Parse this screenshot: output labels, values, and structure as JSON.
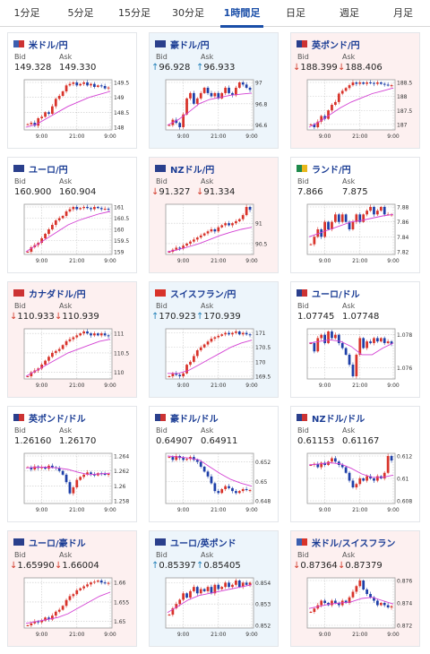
{
  "tabs": [
    {
      "label": "1分足",
      "active": false
    },
    {
      "label": "5分足",
      "active": false
    },
    {
      "label": "15分足",
      "active": false
    },
    {
      "label": "30分足",
      "active": false
    },
    {
      "label": "1時間足",
      "active": true
    },
    {
      "label": "日足",
      "active": false
    },
    {
      "label": "週足",
      "active": false
    },
    {
      "label": "月足",
      "active": false
    }
  ],
  "labels": {
    "bid": "Bid",
    "ask": "Ask"
  },
  "colors": {
    "down_bg": "#fdf0f0",
    "up_bg": "#edf5fb",
    "down": "#d23a2a",
    "up": "#1f7fb8",
    "candle_up": "#d8332a",
    "candle_down": "#1e3fa8",
    "ma": "#d340d3",
    "pair_text": "#1a3c94"
  },
  "cards": [
    {
      "pair": "米ドル/円",
      "flag": [
        "#3c5fb0",
        "#cc3333"
      ],
      "dir": "none",
      "bid": "149.328",
      "ask": "149.330",
      "chart": {
        "y_ticks": [
          "149.5",
          "149",
          "148.5",
          "148"
        ],
        "x_ticks": [
          "9:00",
          "21:00",
          "9:00"
        ],
        "path": [
          148.1,
          148.15,
          148.05,
          148.3,
          148.35,
          148.5,
          148.45,
          148.7,
          148.95,
          149.05,
          149.2,
          149.4,
          149.45,
          149.5,
          149.4,
          149.45,
          149.5,
          149.4,
          149.45,
          149.35,
          149.4,
          149.38,
          149.3,
          149.33
        ],
        "ma": [
          148.0,
          148.1,
          148.3,
          148.5,
          148.7,
          148.85,
          149.0,
          149.1,
          149.2
        ]
      }
    },
    {
      "pair": "豪ドル/円",
      "flag": [
        "#2a3f8c",
        "#2a3f8c"
      ],
      "dir": "up",
      "bid": "96.928",
      "ask": "96.933",
      "chart": {
        "y_ticks": [
          "97",
          "96.8",
          "96.6"
        ],
        "x_ticks": [
          "9:00",
          "21:00",
          "9:00"
        ],
        "path": [
          96.6,
          96.65,
          96.62,
          96.58,
          96.7,
          96.85,
          96.9,
          96.8,
          96.85,
          96.9,
          96.95,
          96.9,
          96.87,
          96.9,
          96.85,
          96.9,
          96.95,
          96.9,
          96.88,
          96.95,
          97.0,
          96.98,
          96.95,
          96.93
        ],
        "ma": [
          96.6,
          96.65,
          96.72,
          96.8,
          96.84,
          96.86,
          96.88,
          96.89,
          96.9
        ]
      }
    },
    {
      "pair": "英ポンド/円",
      "flag": [
        "#2a3f8c",
        "#cc3333"
      ],
      "dir": "down",
      "bid": "188.399",
      "ask": "188.406",
      "chart": {
        "y_ticks": [
          "188.5",
          "188",
          "187.5",
          "187"
        ],
        "x_ticks": [
          "9:00",
          "21:00",
          "9:00"
        ],
        "path": [
          187.0,
          186.9,
          187.1,
          187.3,
          187.2,
          187.5,
          187.7,
          187.8,
          188.1,
          188.2,
          188.3,
          188.4,
          188.5,
          188.45,
          188.5,
          188.45,
          188.5,
          188.48,
          188.45,
          188.5,
          188.45,
          188.42,
          188.4,
          188.4
        ],
        "ma": [
          186.9,
          187.1,
          187.35,
          187.6,
          187.8,
          187.95,
          188.1,
          188.2,
          188.3
        ]
      }
    },
    {
      "pair": "ユーロ/円",
      "flag": [
        "#2a3f8c",
        "#2a3f8c"
      ],
      "dir": "none",
      "bid": "160.900",
      "ask": "160.904",
      "chart": {
        "y_ticks": [
          "161",
          "160.5",
          "160",
          "159.5",
          "159"
        ],
        "x_ticks": [
          "9:00",
          "21:00",
          "9:00"
        ],
        "path": [
          159.0,
          159.2,
          159.3,
          159.4,
          159.6,
          159.8,
          160.0,
          160.2,
          160.4,
          160.5,
          160.6,
          160.8,
          160.9,
          161.0,
          160.9,
          160.95,
          161.0,
          160.95,
          160.9,
          161.0,
          160.95,
          160.9,
          160.92,
          160.9
        ],
        "ma": [
          159.0,
          159.3,
          159.6,
          159.9,
          160.2,
          160.4,
          160.55,
          160.7,
          160.8
        ]
      }
    },
    {
      "pair": "NZドル/円",
      "flag": [
        "#2a3f8c",
        "#2a3f8c"
      ],
      "dir": "down",
      "bid": "91.327",
      "ask": "91.334",
      "chart": {
        "y_ticks": [
          "91",
          "90.5"
        ],
        "x_ticks": [
          "9:00",
          "21:00",
          "9:00"
        ],
        "path": [
          90.3,
          90.35,
          90.4,
          90.38,
          90.45,
          90.5,
          90.55,
          90.6,
          90.65,
          90.7,
          90.75,
          90.8,
          90.85,
          90.8,
          90.9,
          90.95,
          91.0,
          90.95,
          91.0,
          91.05,
          91.1,
          91.2,
          91.4,
          91.33
        ],
        "ma": [
          90.3,
          90.35,
          90.42,
          90.5,
          90.6,
          90.7,
          90.78,
          90.85,
          90.9
        ]
      }
    },
    {
      "pair": "ランド/円",
      "flag": [
        "#1f8a4c",
        "#e8b71c"
      ],
      "dir": "none",
      "bid": "7.866",
      "ask": "7.875",
      "chart": {
        "y_ticks": [
          "7.88",
          "7.86",
          "7.84",
          "7.82"
        ],
        "x_ticks": [
          "9:00",
          "21:00",
          "9:00"
        ],
        "path": [
          7.83,
          7.84,
          7.85,
          7.84,
          7.86,
          7.85,
          7.86,
          7.87,
          7.86,
          7.87,
          7.86,
          7.85,
          7.86,
          7.87,
          7.86,
          7.87,
          7.875,
          7.88,
          7.87,
          7.875,
          7.88,
          7.87,
          7.87,
          7.87
        ],
        "ma": [
          7.84,
          7.845,
          7.85,
          7.855,
          7.86,
          7.862,
          7.865,
          7.868,
          7.87
        ]
      }
    },
    {
      "pair": "カナダドル/円",
      "flag": [
        "#cc3333",
        "#cc3333"
      ],
      "dir": "down",
      "bid": "110.933",
      "ask": "110.939",
      "chart": {
        "y_ticks": [
          "111",
          "110.5",
          "110"
        ],
        "x_ticks": [
          "9:00",
          "21:00",
          "9:00"
        ],
        "path": [
          109.9,
          110.0,
          110.05,
          110.1,
          110.2,
          110.3,
          110.4,
          110.5,
          110.55,
          110.6,
          110.7,
          110.8,
          110.85,
          110.9,
          110.95,
          111.0,
          111.05,
          111.0,
          110.95,
          111.0,
          110.95,
          111.0,
          110.95,
          110.93
        ],
        "ma": [
          109.9,
          110.05,
          110.2,
          110.35,
          110.5,
          110.6,
          110.7,
          110.8,
          110.85
        ]
      }
    },
    {
      "pair": "スイスフラン/円",
      "flag": [
        "#d8332a",
        "#d8332a"
      ],
      "dir": "up",
      "bid": "170.923",
      "ask": "170.939",
      "chart": {
        "y_ticks": [
          "171",
          "170.5",
          "170",
          "169.5"
        ],
        "x_ticks": [
          "9:00",
          "21:00",
          "9:00"
        ],
        "path": [
          169.5,
          169.6,
          169.55,
          169.5,
          169.6,
          169.9,
          170.0,
          170.2,
          170.4,
          170.5,
          170.6,
          170.7,
          170.8,
          170.85,
          170.9,
          170.95,
          171.0,
          170.95,
          171.0,
          171.05,
          170.95,
          171.0,
          170.95,
          170.93
        ],
        "ma": [
          169.6,
          169.6,
          169.7,
          169.9,
          170.1,
          170.3,
          170.5,
          170.65,
          170.75
        ]
      }
    },
    {
      "pair": "ユーロ/ドル",
      "flag": [
        "#2a3f8c",
        "#cc3333"
      ],
      "dir": "none",
      "bid": "1.07745",
      "ask": "1.07748",
      "chart": {
        "y_ticks": [
          "1.078",
          "1.076"
        ],
        "x_ticks": [
          "9:00",
          "21:00",
          "9:00"
        ],
        "path": [
          1.0775,
          1.077,
          1.0778,
          1.078,
          1.0775,
          1.0782,
          1.0778,
          1.078,
          1.0775,
          1.0772,
          1.0768,
          1.0762,
          1.0755,
          1.0768,
          1.0778,
          1.0772,
          1.0776,
          1.0775,
          1.0778,
          1.0776,
          1.0778,
          1.0775,
          1.0776,
          1.07745
        ],
        "ma": [
          1.0775,
          1.0776,
          1.0777,
          1.0776,
          1.0773,
          1.0768,
          1.0768,
          1.0772,
          1.0775
        ]
      }
    },
    {
      "pair": "英ポンド/ドル",
      "flag": [
        "#2a3f8c",
        "#cc3333"
      ],
      "dir": "none",
      "bid": "1.26160",
      "ask": "1.26170",
      "chart": {
        "y_ticks": [
          "1.264",
          "1.262",
          "1.26",
          "1.258"
        ],
        "x_ticks": [
          "9:00",
          "21:00",
          "9:00"
        ],
        "path": [
          1.2625,
          1.2622,
          1.2626,
          1.2624,
          1.2625,
          1.2623,
          1.2627,
          1.2625,
          1.2624,
          1.262,
          1.2615,
          1.2605,
          1.259,
          1.2598,
          1.2608,
          1.2612,
          1.2615,
          1.2618,
          1.2616,
          1.2614,
          1.2617,
          1.2616,
          1.2615,
          1.2616
        ],
        "ma": [
          1.2624,
          1.2625,
          1.2625,
          1.2624,
          1.2622,
          1.2618,
          1.2615,
          1.2616,
          1.2617
        ]
      }
    },
    {
      "pair": "豪ドル/ドル",
      "flag": [
        "#2a3f8c",
        "#cc3333"
      ],
      "dir": "none",
      "bid": "0.64907",
      "ask": "0.64911",
      "chart": {
        "y_ticks": [
          "0.652",
          "0.65",
          "0.648"
        ],
        "x_ticks": [
          "9:00",
          "21:00",
          "9:00"
        ],
        "path": [
          0.6525,
          0.6522,
          0.6526,
          0.6524,
          0.6522,
          0.6523,
          0.6525,
          0.6522,
          0.652,
          0.6515,
          0.651,
          0.6505,
          0.6498,
          0.649,
          0.6488,
          0.6492,
          0.6495,
          0.6493,
          0.649,
          0.6488,
          0.649,
          0.6492,
          0.6491,
          0.6491
        ],
        "ma": [
          0.6526,
          0.6525,
          0.6524,
          0.6522,
          0.6515,
          0.6508,
          0.6502,
          0.6498,
          0.6495
        ]
      }
    },
    {
      "pair": "NZドル/ドル",
      "flag": [
        "#2a3f8c",
        "#cc3333"
      ],
      "dir": "none",
      "bid": "0.61153",
      "ask": "0.61167",
      "chart": {
        "y_ticks": [
          "0.612",
          "0.61",
          "0.608"
        ],
        "x_ticks": [
          "9:00",
          "21:00",
          "9:00"
        ],
        "path": [
          0.6112,
          0.6113,
          0.611,
          0.6114,
          0.6112,
          0.6115,
          0.6118,
          0.6115,
          0.6112,
          0.611,
          0.6105,
          0.6098,
          0.6092,
          0.6095,
          0.61,
          0.6098,
          0.6102,
          0.61,
          0.6098,
          0.6102,
          0.61,
          0.6105,
          0.612,
          0.6116
        ],
        "ma": [
          0.6112,
          0.6113,
          0.6114,
          0.6113,
          0.6109,
          0.6104,
          0.6101,
          0.6101,
          0.6103
        ]
      }
    },
    {
      "pair": "ユーロ/豪ドル",
      "flag": [
        "#2a3f8c",
        "#2a3f8c"
      ],
      "dir": "down",
      "bid": "1.65990",
      "ask": "1.66004",
      "chart": {
        "y_ticks": [
          "1.66",
          "1.655",
          "1.65"
        ],
        "x_ticks": [
          "9:00",
          "21:00",
          "9:00"
        ],
        "path": [
          1.649,
          1.6495,
          1.65,
          1.6498,
          1.6502,
          1.651,
          1.6505,
          1.6515,
          1.6525,
          1.653,
          1.654,
          1.6555,
          1.6565,
          1.657,
          1.658,
          1.6585,
          1.659,
          1.6595,
          1.66,
          1.6602,
          1.6605,
          1.66,
          1.6598,
          1.6599
        ],
        "ma": [
          1.6495,
          1.65,
          1.6505,
          1.651,
          1.652,
          1.6535,
          1.655,
          1.6565,
          1.6575
        ]
      }
    },
    {
      "pair": "ユーロ/英ポンド",
      "flag": [
        "#2a3f8c",
        "#2a3f8c"
      ],
      "dir": "up",
      "bid": "0.85397",
      "ask": "0.85405",
      "chart": {
        "y_ticks": [
          "0.854",
          "0.853",
          "0.852"
        ],
        "x_ticks": [
          "9:00",
          "21:00",
          "9:00"
        ],
        "path": [
          0.8525,
          0.8528,
          0.853,
          0.8532,
          0.8535,
          0.8533,
          0.8536,
          0.8538,
          0.8535,
          0.8537,
          0.8536,
          0.8538,
          0.8535,
          0.8539,
          0.8537,
          0.8538,
          0.854,
          0.8538,
          0.8539,
          0.8541,
          0.8538,
          0.854,
          0.8539,
          0.854
        ],
        "ma": [
          0.8526,
          0.8529,
          0.8532,
          0.8534,
          0.8535,
          0.8536,
          0.8537,
          0.8538,
          0.8539
        ]
      }
    },
    {
      "pair": "米ドル/スイスフラン",
      "flag": [
        "#3c5fb0",
        "#d8332a"
      ],
      "dir": "down",
      "bid": "0.87364",
      "ask": "0.87379",
      "chart": {
        "y_ticks": [
          "0.876",
          "0.874",
          "0.872"
        ],
        "x_ticks": [
          "9:00",
          "21:00",
          "9:00"
        ],
        "path": [
          0.8732,
          0.8735,
          0.8738,
          0.8742,
          0.874,
          0.8738,
          0.8742,
          0.874,
          0.8738,
          0.8742,
          0.874,
          0.8745,
          0.875,
          0.8755,
          0.876,
          0.8752,
          0.8748,
          0.8745,
          0.8742,
          0.8738,
          0.874,
          0.8738,
          0.8736,
          0.8737
        ],
        "ma": [
          0.8735,
          0.8737,
          0.8739,
          0.874,
          0.8741,
          0.8744,
          0.8745,
          0.8742,
          0.8739
        ]
      }
    }
  ]
}
